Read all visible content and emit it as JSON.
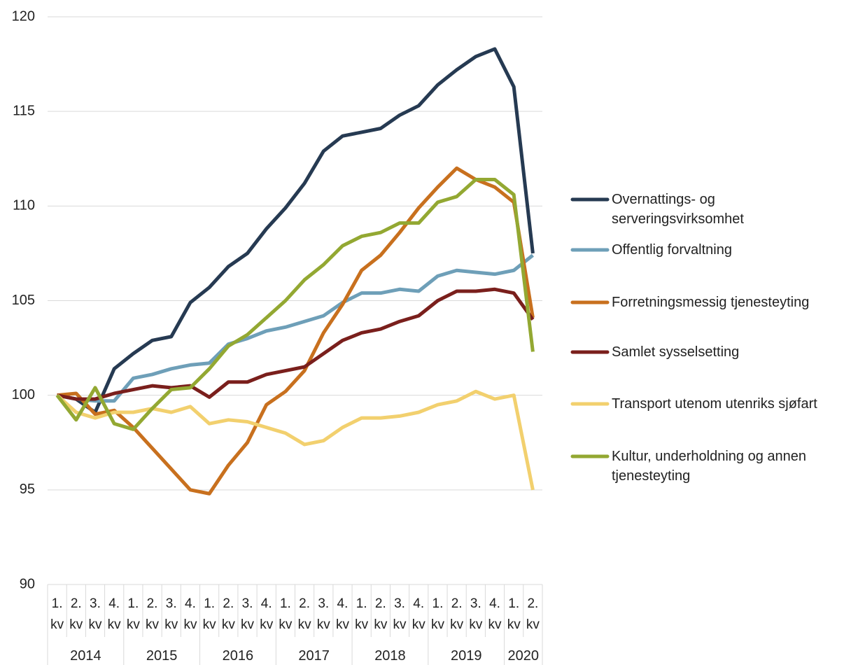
{
  "chart_data": {
    "type": "line",
    "categories": [
      "1. kv",
      "2. kv",
      "3. kv",
      "4. kv",
      "1. kv",
      "2. kv",
      "3. kv",
      "4. kv",
      "1. kv",
      "2. kv",
      "3. kv",
      "4. kv",
      "1. kv",
      "2. kv",
      "3. kv",
      "4. kv",
      "1. kv",
      "2. kv",
      "3. kv",
      "4. kv",
      "1. kv",
      "2. kv",
      "3. kv",
      "4. kv",
      "1. kv",
      "2. kv"
    ],
    "years": [
      "2014",
      "2015",
      "2016",
      "2017",
      "2018",
      "2019",
      "2020"
    ],
    "ylim": [
      90,
      120
    ],
    "yticks": [
      90,
      95,
      100,
      105,
      110,
      115,
      120
    ],
    "grid": true,
    "legend": "right",
    "series": [
      {
        "name": "Overnattings- og serveringsvirksomhet",
        "color": "#263a52",
        "values": [
          100,
          99.8,
          99.1,
          101.4,
          102.2,
          102.9,
          103.1,
          104.9,
          105.7,
          106.8,
          107.5,
          108.8,
          109.9,
          111.2,
          112.9,
          113.7,
          113.9,
          114.1,
          114.8,
          115.3,
          116.4,
          117.2,
          117.9,
          118.3,
          116.3,
          107.5
        ]
      },
      {
        "name": "Offentlig forvaltning",
        "color": "#6e9fb8",
        "values": [
          100,
          99.8,
          99.7,
          99.7,
          100.9,
          101.1,
          101.4,
          101.6,
          101.7,
          102.7,
          103.0,
          103.4,
          103.6,
          103.9,
          104.2,
          104.9,
          105.4,
          105.4,
          105.6,
          105.5,
          106.3,
          106.6,
          106.5,
          106.4,
          106.6,
          107.4
        ]
      },
      {
        "name": "Forretningsmessig tjenesteyting",
        "color": "#c8701e",
        "values": [
          100,
          100.1,
          99.0,
          99.2,
          98.3,
          97.2,
          96.1,
          95.0,
          94.8,
          96.3,
          97.5,
          99.5,
          100.2,
          101.3,
          103.3,
          104.8,
          106.6,
          107.4,
          108.6,
          109.9,
          111.0,
          112.0,
          111.4,
          111.0,
          110.2,
          104.1
        ]
      },
      {
        "name": "Samlet sysselsetting",
        "color": "#7a1f1c",
        "values": [
          100,
          99.8,
          99.8,
          100.1,
          100.3,
          100.5,
          100.4,
          100.5,
          99.9,
          100.7,
          100.7,
          101.1,
          101.3,
          101.5,
          102.2,
          102.9,
          103.3,
          103.5,
          103.9,
          104.2,
          105.0,
          105.5,
          105.5,
          105.6,
          105.4,
          104.0
        ]
      },
      {
        "name": "Transport utenom utenriks sjøfart",
        "color": "#f2d06e",
        "values": [
          100,
          99.1,
          98.8,
          99.1,
          99.1,
          99.3,
          99.1,
          99.4,
          98.5,
          98.7,
          98.6,
          98.3,
          98.0,
          97.4,
          97.6,
          98.3,
          98.8,
          98.8,
          98.9,
          99.1,
          99.5,
          99.7,
          100.2,
          99.8,
          100.0,
          95.0
        ]
      },
      {
        "name": "Kultur, underholdning og annen tjenesteyting",
        "color": "#93a832",
        "values": [
          100,
          98.7,
          100.4,
          98.5,
          98.2,
          99.3,
          100.3,
          100.4,
          101.4,
          102.6,
          103.2,
          104.1,
          105.0,
          106.1,
          106.9,
          107.9,
          108.4,
          108.6,
          109.1,
          109.1,
          110.2,
          110.5,
          111.4,
          111.4,
          110.6,
          102.3
        ]
      }
    ]
  }
}
